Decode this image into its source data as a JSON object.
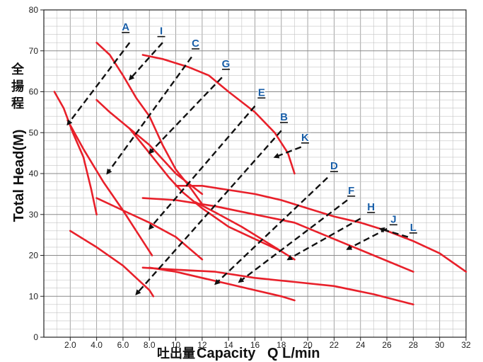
{
  "chart_data": {
    "type": "line",
    "title": "",
    "xlabel": {
      "cjk": "吐出量",
      "text": "Capacity   Q L/min"
    },
    "ylabel": {
      "cjk": "全揚程",
      "text": "Total Head(M)"
    },
    "xlim": [
      0,
      32
    ],
    "ylim": [
      0,
      80
    ],
    "x_ticks": [
      "2.0",
      "4.0",
      "6.0",
      "8.0",
      "10",
      "12",
      "14",
      "16",
      "18",
      "20",
      "22",
      "24",
      "26",
      "28",
      "30",
      "32"
    ],
    "x_tick_values": [
      2,
      4,
      6,
      8,
      10,
      12,
      14,
      16,
      18,
      20,
      22,
      24,
      26,
      28,
      30,
      32
    ],
    "y_ticks": [
      "0",
      "10",
      "20",
      "30",
      "40",
      "50",
      "60",
      "70",
      "80"
    ],
    "y_tick_values": [
      0,
      10,
      20,
      30,
      40,
      50,
      60,
      70,
      80
    ],
    "grid": true,
    "curve_color": "#e8202a",
    "arrow_color": "#111111",
    "label_color": "#1a5fa8",
    "series": [
      {
        "points": [
          [
            0.8,
            60
          ],
          [
            1.5,
            56
          ],
          [
            2.2,
            50
          ],
          [
            3.0,
            44
          ],
          [
            3.6,
            36
          ],
          [
            4.0,
            30
          ]
        ]
      },
      {
        "points": [
          [
            1.8,
            53
          ],
          [
            3.0,
            46
          ],
          [
            4.5,
            38
          ],
          [
            6.0,
            31
          ],
          [
            7.0,
            26
          ],
          [
            7.8,
            22
          ],
          [
            8.2,
            20
          ]
        ]
      },
      {
        "points": [
          [
            2.0,
            26
          ],
          [
            4.0,
            22
          ],
          [
            6.0,
            17.5
          ],
          [
            7.0,
            14.5
          ],
          [
            8.0,
            11.5
          ],
          [
            8.3,
            10
          ]
        ]
      },
      {
        "points": [
          [
            4.0,
            72
          ],
          [
            5.0,
            69
          ],
          [
            6.0,
            64
          ],
          [
            7.0,
            58.5
          ],
          [
            8.0,
            54
          ],
          [
            9.0,
            47
          ],
          [
            10.0,
            41
          ],
          [
            11.0,
            37
          ],
          [
            12.0,
            32.5
          ]
        ]
      },
      {
        "points": [
          [
            4.0,
            58
          ],
          [
            5.0,
            55
          ],
          [
            6.5,
            51
          ],
          [
            8.0,
            47
          ],
          [
            10.0,
            40
          ],
          [
            12.0,
            35
          ]
        ]
      },
      {
        "points": [
          [
            6.5,
            51
          ],
          [
            8.0,
            45
          ],
          [
            9.5,
            39
          ],
          [
            10.5,
            35.5
          ],
          [
            12.0,
            31.5
          ],
          [
            14.0,
            27
          ],
          [
            16.0,
            24
          ],
          [
            18.0,
            21
          ]
        ]
      },
      {
        "points": [
          [
            4.0,
            34
          ],
          [
            6.0,
            31
          ],
          [
            8.0,
            28
          ],
          [
            10.0,
            24.5
          ],
          [
            12.0,
            19
          ]
        ]
      },
      {
        "points": [
          [
            7.5,
            69
          ],
          [
            9.0,
            68
          ],
          [
            11.0,
            66
          ],
          [
            12.5,
            64
          ],
          [
            14.0,
            60
          ],
          [
            16.0,
            55
          ],
          [
            17.5,
            50
          ],
          [
            18.5,
            45
          ],
          [
            19.0,
            40
          ]
        ]
      },
      {
        "points": [
          [
            10.0,
            37
          ],
          [
            12.0,
            37
          ],
          [
            14.0,
            36
          ],
          [
            16.0,
            35
          ],
          [
            18.0,
            33.5
          ],
          [
            20.0,
            31.5
          ],
          [
            22.0,
            29.5
          ],
          [
            24.0,
            28
          ],
          [
            26.0,
            26
          ],
          [
            28.0,
            23.5
          ],
          [
            30.0,
            20.5
          ],
          [
            32.0,
            16
          ]
        ]
      },
      {
        "points": [
          [
            11.5,
            33
          ],
          [
            13.0,
            30.5
          ],
          [
            15.0,
            27
          ],
          [
            17.0,
            23
          ],
          [
            19.0,
            19
          ]
        ]
      },
      {
        "points": [
          [
            7.5,
            34
          ],
          [
            10.0,
            33.5
          ],
          [
            13.0,
            32
          ],
          [
            16.0,
            30
          ],
          [
            19.0,
            28
          ],
          [
            22.0,
            24
          ],
          [
            25.0,
            20
          ],
          [
            28.0,
            16
          ]
        ]
      },
      {
        "points": [
          [
            7.5,
            17
          ],
          [
            10.0,
            16.5
          ],
          [
            13.0,
            16
          ],
          [
            16.0,
            14.5
          ],
          [
            19.0,
            13.5
          ],
          [
            22.0,
            12.5
          ],
          [
            25.0,
            10.5
          ],
          [
            28.0,
            8
          ]
        ]
      },
      {
        "points": [
          [
            8.0,
            17
          ],
          [
            10.0,
            16
          ],
          [
            12.0,
            14.5
          ],
          [
            14.0,
            13
          ],
          [
            16.0,
            11.5
          ],
          [
            18.0,
            10
          ],
          [
            19.0,
            9
          ]
        ]
      }
    ],
    "annotations": [
      {
        "label": "A",
        "label_x": 6.2,
        "label_y": 75,
        "from": [
          6.5,
          72
        ],
        "to": [
          1.8,
          52
        ]
      },
      {
        "label": "I",
        "label_x": 8.9,
        "label_y": 74,
        "from": [
          9.0,
          72
        ],
        "to": [
          6.5,
          63
        ]
      },
      {
        "label": "C",
        "label_x": 11.5,
        "label_y": 71,
        "from": [
          11.2,
          68.5
        ],
        "to": [
          4.8,
          40
        ]
      },
      {
        "label": "G",
        "label_x": 13.8,
        "label_y": 66,
        "from": [
          13.5,
          63.5
        ],
        "to": [
          8.0,
          45
        ]
      },
      {
        "label": "E",
        "label_x": 16.5,
        "label_y": 59,
        "from": [
          16.0,
          56.5
        ],
        "to": [
          8.0,
          26.5
        ]
      },
      {
        "label": "B",
        "label_x": 18.2,
        "label_y": 53,
        "from": [
          18.0,
          50.5
        ],
        "to": [
          7.0,
          10.5
        ]
      },
      {
        "label": "K",
        "label_x": 19.8,
        "label_y": 48,
        "from": [
          19.5,
          46.5
        ],
        "to": [
          17.5,
          44
        ]
      },
      {
        "label": "D",
        "label_x": 22.0,
        "label_y": 41,
        "from": [
          21.5,
          39
        ],
        "to": [
          13.0,
          13
        ]
      },
      {
        "label": "F",
        "label_x": 23.3,
        "label_y": 35,
        "from": [
          23.0,
          33.5
        ],
        "to": [
          14.8,
          13.5
        ]
      },
      {
        "label": "H",
        "label_x": 24.8,
        "label_y": 31,
        "from": [
          24.0,
          29
        ],
        "to": [
          18.5,
          19
        ]
      },
      {
        "label": "J",
        "label_x": 26.5,
        "label_y": 28,
        "from": [
          26.0,
          26.5
        ],
        "to": [
          23.0,
          21.5
        ]
      },
      {
        "label": "L",
        "label_x": 28.0,
        "label_y": 26,
        "from": [
          27.6,
          24.5
        ],
        "to": [
          25.5,
          26.5
        ]
      }
    ]
  }
}
